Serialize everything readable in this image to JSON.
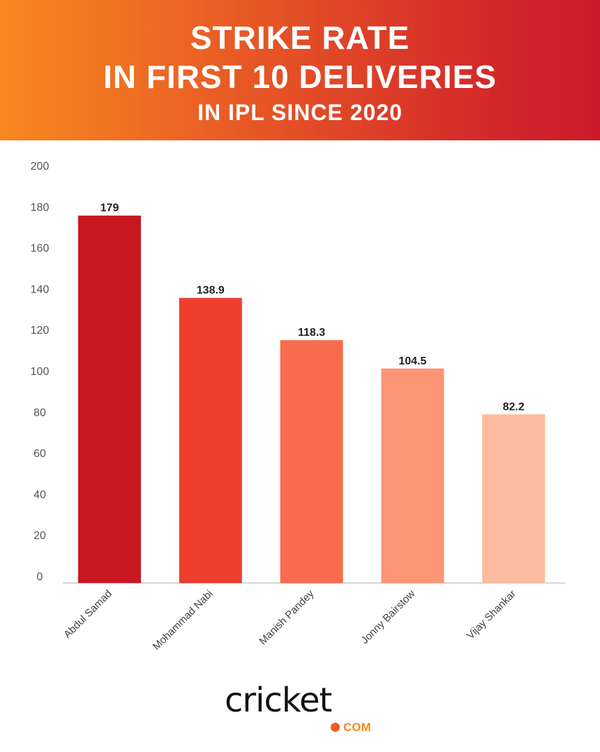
{
  "header": {
    "line1": "STRIKE RATE",
    "line2": "IN FIRST 10 DELIVERIES",
    "line3": "IN IPL SINCE 2020"
  },
  "chart_data": {
    "type": "bar",
    "title": "STRIKE RATE IN FIRST 10 DELIVERIES IN IPL SINCE 2020",
    "categories": [
      "Abdul Samad",
      "Mohammad Nabi",
      "Manish Pandey",
      "Jonny Bairstow",
      "Vijay Shankar"
    ],
    "values": [
      179,
      138.9,
      118.3,
      104.5,
      82.2
    ],
    "value_labels": [
      "179",
      "138.9",
      "118.3",
      "104.5",
      "82.2"
    ],
    "colors": [
      "#c8171f",
      "#ee3e2e",
      "#f96b4d",
      "#fd9473",
      "#fdbba0"
    ],
    "yticks": [
      0,
      20,
      40,
      60,
      80,
      100,
      120,
      140,
      160,
      180,
      200
    ],
    "ylim": [
      0,
      200
    ],
    "xlabel": "",
    "ylabel": "",
    "grid": false
  },
  "logo": {
    "word": "cricket",
    "suffix": "COM"
  }
}
